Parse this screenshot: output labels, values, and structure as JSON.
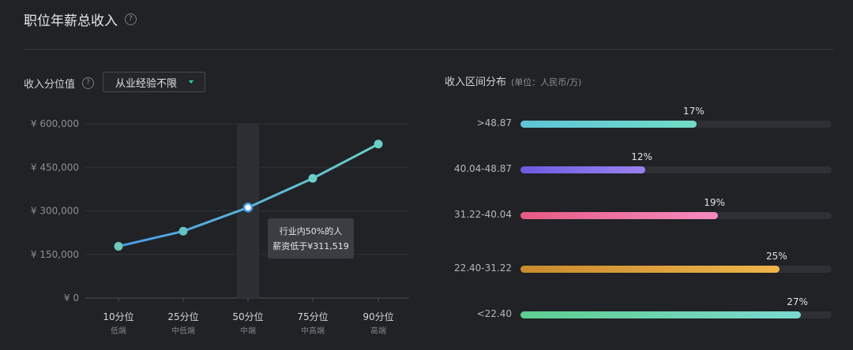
{
  "header": {
    "title": "职位年薪总收入",
    "help_icon": "question-circle-icon"
  },
  "left_panel": {
    "label": "收入分位值",
    "dropdown_value": "从业经验不限"
  },
  "right_panel": {
    "label": "收入区间分布",
    "unit_note": "(单位：人民币/万)"
  },
  "tooltip": {
    "line1": "行业内50%的人",
    "line2": "薪资低于¥311,519"
  },
  "colors": {
    "line_start": "#4a9ae8",
    "line_end": "#6bcfc6",
    "bar_tracks": "#2e3035"
  },
  "chart_data": [
    {
      "type": "line",
      "categories": [
        "10分位",
        "25分位",
        "50分位",
        "75分位",
        "90分位"
      ],
      "sub_labels": [
        "低端",
        "中低端",
        "中端",
        "中高端",
        "高端"
      ],
      "values": [
        178000,
        230000,
        311519,
        412000,
        530000
      ],
      "ylim": [
        0,
        600000
      ],
      "yticks": [
        0,
        150000,
        300000,
        450000,
        600000
      ],
      "ytick_labels": [
        "¥ 0",
        "¥ 150,000",
        "¥ 300,000",
        "¥ 450,000",
        "¥ 600,000"
      ],
      "highlight_index": 2,
      "grid": true
    },
    {
      "type": "bar",
      "orientation": "horizontal",
      "categories": [
        ">48.87",
        "40.04-48.87",
        "31.22-40.04",
        "22.40-31.22",
        "<22.40"
      ],
      "values": [
        17,
        12,
        19,
        25,
        27
      ],
      "value_labels": [
        "17%",
        "12%",
        "19%",
        "25%",
        "27%"
      ],
      "xlim": [
        0,
        30
      ],
      "bar_colors": [
        [
          "#5ec3d6",
          "#72dcc6"
        ],
        [
          "#6a5be0",
          "#9a82f0"
        ],
        [
          "#e65a84",
          "#f58bc0"
        ],
        [
          "#c98a2e",
          "#f0b44a"
        ],
        [
          "#5ccf8e",
          "#7cd8d0"
        ]
      ]
    }
  ]
}
